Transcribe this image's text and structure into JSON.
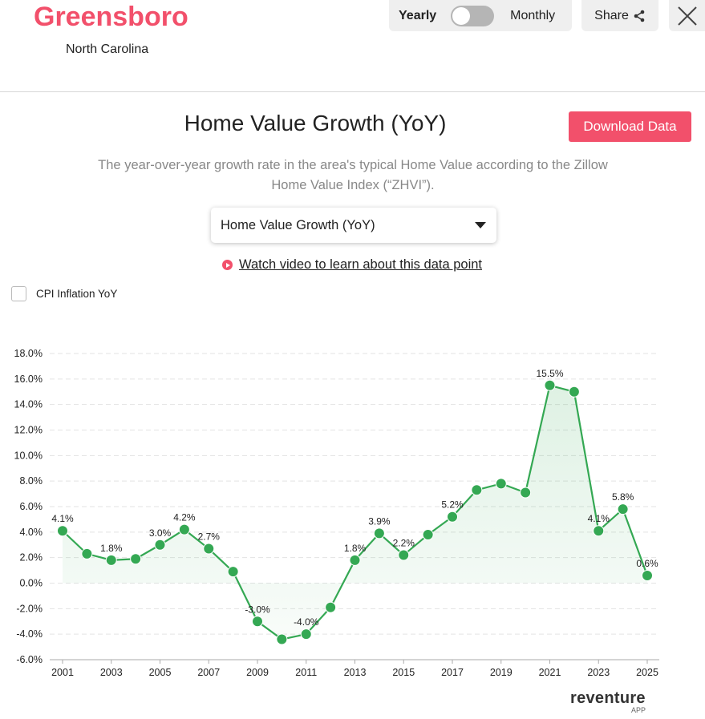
{
  "header": {
    "city": "Greensboro",
    "state": "North Carolina",
    "toggle": {
      "left": "Yearly",
      "right": "Monthly",
      "selected": "Yearly"
    },
    "share_label": "Share",
    "close_icon": "close-icon",
    "share_icon": "share-icon"
  },
  "main": {
    "title": "Home Value Growth (YoY)",
    "download_label": "Download Data",
    "description": "The year-over-year growth rate in the area's typical Home Value according to the Zillow Home Value Index (“ZHVI”).",
    "select_value": "Home Value Growth (YoY)",
    "video_link": "Watch video to learn about this data point",
    "cpi_label": "CPI Inflation YoY",
    "cpi_checked": false
  },
  "colors": {
    "accent": "#f2506b",
    "line": "#34a853"
  },
  "chart_data": {
    "type": "line",
    "title": "",
    "xlabel": "",
    "ylabel": "",
    "x": [
      2001,
      2002,
      2003,
      2004,
      2005,
      2006,
      2007,
      2008,
      2009,
      2010,
      2011,
      2012,
      2013,
      2014,
      2015,
      2016,
      2017,
      2018,
      2019,
      2020,
      2021,
      2022,
      2023,
      2024,
      2025
    ],
    "values": [
      4.1,
      2.3,
      1.8,
      1.9,
      3.0,
      4.2,
      2.7,
      0.9,
      -3.0,
      -4.4,
      -4.0,
      -1.9,
      1.8,
      3.9,
      2.2,
      3.8,
      5.2,
      7.3,
      7.8,
      7.1,
      15.5,
      15.0,
      4.1,
      5.8,
      0.6
    ],
    "labeled": [
      2001,
      2003,
      2005,
      2006,
      2007,
      2009,
      2011,
      2013,
      2014,
      2015,
      2017,
      2021,
      2023,
      2024,
      2025
    ],
    "ylim": [
      -6,
      18
    ],
    "yticks": [
      -6,
      -4,
      -2,
      0,
      2,
      4,
      6,
      8,
      10,
      12,
      14,
      16,
      18
    ],
    "xticks": [
      2001,
      2003,
      2005,
      2007,
      2009,
      2011,
      2013,
      2015,
      2017,
      2019,
      2021,
      2023,
      2025
    ],
    "grid": true,
    "area_fill": true
  },
  "branding": {
    "logo": "reventure",
    "logo_sub": "APP"
  }
}
